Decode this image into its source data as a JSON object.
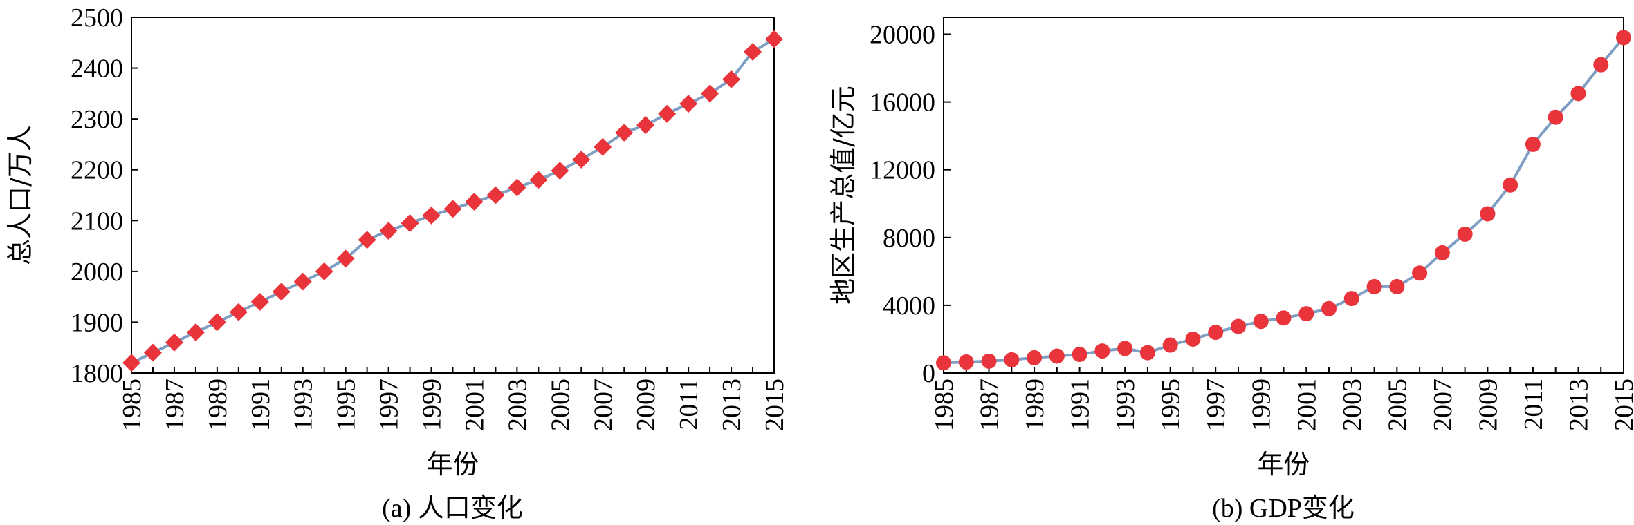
{
  "chart_data": [
    {
      "type": "line",
      "caption": "(a) 人口变化",
      "xlabel": "年份",
      "ylabel": "总人口/万人",
      "ylim": [
        1800,
        2500
      ],
      "yticks": [
        1800,
        1900,
        2000,
        2100,
        2200,
        2300,
        2400,
        2500
      ],
      "xticks": [
        1985,
        1987,
        1989,
        1991,
        1993,
        1995,
        1997,
        1999,
        2001,
        2003,
        2005,
        2007,
        2009,
        2011,
        2013,
        2015
      ],
      "marker": "diamond",
      "marker_color": "#e8343a",
      "line_color": "#7f9ec4",
      "x": [
        1985,
        1986,
        1987,
        1988,
        1989,
        1990,
        1991,
        1992,
        1993,
        1994,
        1995,
        1996,
        1997,
        1998,
        1999,
        2000,
        2001,
        2002,
        2003,
        2004,
        2005,
        2006,
        2007,
        2008,
        2009,
        2010,
        2011,
        2012,
        2013,
        2014,
        2015
      ],
      "values": [
        1820,
        1840,
        1860,
        1880,
        1900,
        1920,
        1940,
        1960,
        1980,
        2000,
        2025,
        2062,
        2080,
        2095,
        2110,
        2123,
        2137,
        2150,
        2165,
        2180,
        2198,
        2220,
        2245,
        2273,
        2288,
        2310,
        2330,
        2350,
        2378,
        2432,
        2457
      ]
    },
    {
      "type": "line",
      "caption": "(b) GDP变化",
      "xlabel": "年份",
      "ylabel": "地区生产总值/亿元",
      "ylim": [
        0,
        21000
      ],
      "yticks": [
        0,
        4000,
        8000,
        12000,
        16000,
        20000
      ],
      "xticks": [
        1985,
        1987,
        1989,
        1991,
        1993,
        1995,
        1997,
        1999,
        2001,
        2003,
        2005,
        2007,
        2009,
        2011,
        2013,
        2015
      ],
      "marker": "circle",
      "marker_color": "#e8343a",
      "line_color": "#7f9ec4",
      "x": [
        1985,
        1986,
        1987,
        1988,
        1989,
        1990,
        1991,
        1992,
        1993,
        1994,
        1995,
        1996,
        1997,
        1998,
        1999,
        2000,
        2001,
        2002,
        2003,
        2004,
        2005,
        2006,
        2007,
        2008,
        2009,
        2010,
        2011,
        2012,
        2013,
        2014,
        2015
      ],
      "values": [
        600,
        650,
        700,
        780,
        900,
        1000,
        1100,
        1300,
        1450,
        1200,
        1650,
        2000,
        2400,
        2750,
        3050,
        3250,
        3500,
        3800,
        4400,
        5100,
        5100,
        5900,
        7100,
        8200,
        9400,
        11100,
        13500,
        15100,
        16500,
        18200,
        19800
      ]
    }
  ]
}
